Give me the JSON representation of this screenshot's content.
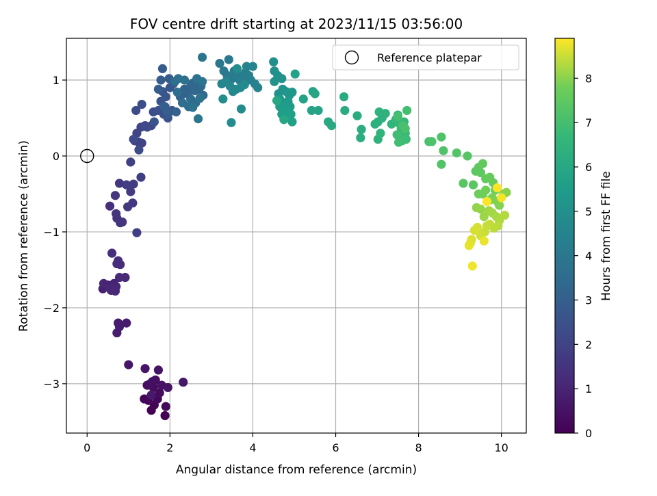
{
  "chart_data": {
    "type": "scatter",
    "title": "FOV centre drift starting at 2023/11/15 03:56:00",
    "xlabel": "Angular distance from reference (arcmin)",
    "ylabel": "Rotation from reference (arcmin)",
    "xlim": [
      -0.5,
      10.6
    ],
    "ylim": [
      -3.65,
      1.55
    ],
    "xticks": [
      0,
      2,
      4,
      6,
      8,
      10
    ],
    "yticks": [
      -3,
      -2,
      -1,
      0,
      1
    ],
    "xtick_labels": [
      "0",
      "2",
      "4",
      "6",
      "8",
      "10"
    ],
    "ytick_labels": [
      "−3",
      "−2",
      "−1",
      "0",
      "1"
    ],
    "grid": true,
    "colormap": "viridis",
    "colorbar": {
      "label": "Hours from first FF file",
      "range": [
        0,
        8.9
      ],
      "ticks": [
        0,
        1,
        2,
        3,
        4,
        5,
        6,
        7,
        8
      ],
      "tick_labels": [
        "0",
        "1",
        "2",
        "3",
        "4",
        "5",
        "6",
        "7",
        "8"
      ]
    },
    "legend": {
      "placement": "top-right",
      "entries": [
        {
          "label": "Reference platepar",
          "marker": "open-circle"
        }
      ]
    },
    "reference_point": {
      "x": 0,
      "y": 0
    },
    "series": [
      {
        "points": [
          [
            1.55,
            -3.35
          ],
          [
            1.88,
            -3.42
          ],
          [
            1.62,
            -3.28
          ],
          [
            1.38,
            -3.2
          ],
          [
            1.48,
            -3.22
          ],
          [
            1.7,
            -3.2
          ],
          [
            1.9,
            -3.3
          ],
          [
            1.75,
            -3.12
          ],
          [
            1.6,
            -3.05
          ],
          [
            1.45,
            -3.02
          ],
          [
            1.52,
            -3.0
          ],
          [
            1.65,
            -2.95
          ],
          [
            1.58,
            -2.97
          ],
          [
            1.8,
            -3.02
          ],
          [
            1.95,
            -3.05
          ],
          [
            1.72,
            -2.82
          ],
          [
            1.4,
            -2.8
          ],
          [
            1.0,
            -2.75
          ],
          [
            2.32,
            -2.98
          ],
          [
            1.55,
            -3.15
          ],
          [
            0.75,
            -2.2
          ],
          [
            0.95,
            -2.2
          ],
          [
            0.72,
            -2.33
          ],
          [
            0.78,
            -2.25
          ],
          [
            0.38,
            -1.75
          ],
          [
            0.5,
            -1.7
          ],
          [
            0.65,
            -1.68
          ],
          [
            0.58,
            -1.77
          ],
          [
            0.4,
            -1.68
          ],
          [
            0.7,
            -1.72
          ],
          [
            0.55,
            -1.74
          ],
          [
            0.68,
            -1.78
          ],
          [
            0.78,
            -1.6
          ],
          [
            0.92,
            -1.6
          ],
          [
            0.72,
            -1.42
          ],
          [
            0.8,
            -1.43
          ],
          [
            0.75,
            -1.38
          ],
          [
            0.6,
            -1.28
          ],
          [
            0.55,
            -0.66
          ],
          [
            0.72,
            -0.82
          ],
          [
            0.8,
            -0.88
          ],
          [
            0.7,
            -0.76
          ],
          [
            0.85,
            -0.87
          ],
          [
            0.68,
            -0.52
          ],
          [
            0.78,
            -0.36
          ],
          [
            0.98,
            -0.67
          ],
          [
            1.1,
            -0.62
          ],
          [
            1.05,
            -0.47
          ],
          [
            1.12,
            -0.37
          ],
          [
            0.95,
            -0.38
          ],
          [
            1.2,
            -1.01
          ],
          [
            1.3,
            -0.28
          ],
          [
            1.05,
            -0.08
          ],
          [
            1.15,
            0.2
          ],
          [
            1.25,
            0.18
          ],
          [
            1.32,
            0.17
          ],
          [
            1.2,
            0.3
          ],
          [
            1.3,
            0.38
          ],
          [
            1.4,
            0.4
          ],
          [
            1.45,
            0.38
          ],
          [
            1.55,
            0.4
          ],
          [
            1.12,
            0.22
          ],
          [
            1.25,
            0.08
          ],
          [
            1.18,
            0.6
          ],
          [
            1.32,
            0.68
          ],
          [
            1.6,
            0.58
          ],
          [
            1.72,
            0.6
          ],
          [
            1.85,
            0.55
          ],
          [
            1.95,
            0.5
          ],
          [
            2.05,
            0.6
          ],
          [
            1.62,
            0.45
          ],
          [
            1.78,
            0.72
          ],
          [
            1.82,
            0.85
          ],
          [
            1.9,
            0.78
          ],
          [
            2.0,
            0.9
          ],
          [
            2.08,
            0.95
          ],
          [
            1.95,
            0.55
          ],
          [
            1.88,
            0.65
          ],
          [
            1.82,
            1.15
          ],
          [
            1.98,
            1.02
          ],
          [
            1.78,
            1.0
          ],
          [
            1.72,
            0.88
          ],
          [
            1.85,
            0.65
          ],
          [
            1.92,
            0.6
          ],
          [
            2.15,
            0.58
          ],
          [
            2.25,
            0.78
          ],
          [
            2.35,
            0.88
          ],
          [
            2.42,
            0.82
          ],
          [
            2.5,
            0.92
          ],
          [
            2.55,
            0.96
          ],
          [
            2.6,
            0.86
          ],
          [
            2.65,
            0.95
          ],
          [
            2.7,
            0.88
          ],
          [
            2.75,
            0.92
          ],
          [
            2.8,
            0.8
          ],
          [
            2.62,
            0.7
          ],
          [
            2.5,
            0.75
          ],
          [
            2.45,
            0.65
          ],
          [
            2.3,
            0.7
          ],
          [
            2.18,
            0.84
          ],
          [
            2.12,
            0.98
          ],
          [
            2.2,
            1.02
          ],
          [
            2.35,
            1.0
          ],
          [
            2.65,
            1.02
          ],
          [
            2.78,
            0.98
          ],
          [
            2.72,
            0.76
          ],
          [
            2.55,
            0.64
          ],
          [
            2.68,
            0.49
          ],
          [
            2.78,
            1.3
          ],
          [
            3.2,
            1.22
          ],
          [
            3.42,
            1.27
          ],
          [
            3.3,
            1.12
          ],
          [
            3.38,
            1.06
          ],
          [
            3.5,
            1.02
          ],
          [
            3.55,
            1.12
          ],
          [
            3.62,
            1.08
          ],
          [
            3.68,
            1.0
          ],
          [
            3.75,
            1.02
          ],
          [
            3.82,
            1.1
          ],
          [
            3.9,
            1.06
          ],
          [
            3.95,
            1.0
          ],
          [
            4.05,
            0.95
          ],
          [
            4.12,
            0.9
          ],
          [
            3.85,
            1.18
          ],
          [
            4.0,
            1.18
          ],
          [
            3.25,
            0.95
          ],
          [
            3.35,
            0.98
          ],
          [
            3.45,
            0.92
          ],
          [
            3.52,
            0.85
          ],
          [
            3.6,
            0.88
          ],
          [
            3.7,
            0.9
          ],
          [
            3.8,
            0.94
          ],
          [
            3.72,
            0.62
          ],
          [
            3.48,
            0.44
          ],
          [
            3.28,
            0.75
          ],
          [
            3.62,
            1.15
          ],
          [
            4.5,
            1.24
          ],
          [
            4.52,
            1.12
          ],
          [
            4.6,
            1.06
          ],
          [
            4.7,
            1.02
          ],
          [
            4.52,
            0.98
          ],
          [
            4.62,
            0.82
          ],
          [
            4.72,
            0.88
          ],
          [
            4.8,
            0.85
          ],
          [
            4.88,
            0.8
          ],
          [
            4.95,
            0.84
          ],
          [
            4.65,
            0.75
          ],
          [
            4.75,
            0.7
          ],
          [
            4.85,
            0.72
          ],
          [
            4.9,
            0.65
          ],
          [
            4.65,
            0.65
          ],
          [
            4.72,
            0.62
          ],
          [
            4.82,
            0.6
          ],
          [
            4.7,
            0.55
          ],
          [
            4.78,
            0.5
          ],
          [
            4.92,
            0.55
          ],
          [
            4.95,
            0.45
          ],
          [
            5.02,
            1.08
          ],
          [
            5.22,
            0.75
          ],
          [
            5.42,
            0.6
          ],
          [
            5.58,
            0.6
          ],
          [
            5.45,
            0.85
          ],
          [
            5.5,
            0.82
          ],
          [
            4.75,
            0.48
          ],
          [
            4.58,
            0.73
          ],
          [
            5.82,
            0.45
          ],
          [
            5.9,
            0.4
          ],
          [
            6.2,
            0.78
          ],
          [
            6.22,
            0.6
          ],
          [
            6.52,
            0.53
          ],
          [
            6.62,
            0.35
          ],
          [
            6.6,
            0.24
          ],
          [
            6.95,
            0.42
          ],
          [
            7.02,
            0.45
          ],
          [
            7.12,
            0.5
          ],
          [
            7.2,
            0.56
          ],
          [
            7.05,
            0.58
          ],
          [
            7.02,
            0.22
          ],
          [
            7.08,
            0.3
          ],
          [
            7.35,
            0.42
          ],
          [
            7.5,
            0.54
          ],
          [
            7.45,
            0.48
          ],
          [
            7.55,
            0.42
          ],
          [
            7.65,
            0.45
          ],
          [
            7.58,
            0.36
          ],
          [
            7.68,
            0.3
          ],
          [
            7.55,
            0.25
          ],
          [
            7.6,
            0.2
          ],
          [
            7.7,
            0.22
          ],
          [
            7.52,
            0.18
          ],
          [
            7.48,
            0.28
          ],
          [
            7.72,
            0.6
          ],
          [
            7.5,
            0.52
          ],
          [
            7.62,
            0.4
          ],
          [
            7.68,
            0.36
          ],
          [
            8.25,
            0.19
          ],
          [
            8.32,
            0.19
          ],
          [
            8.55,
            0.25
          ],
          [
            8.6,
            0.07
          ],
          [
            8.55,
            -0.11
          ],
          [
            8.92,
            0.04
          ],
          [
            9.18,
            0.0
          ],
          [
            9.08,
            -0.36
          ],
          [
            9.32,
            -0.38
          ],
          [
            9.38,
            -0.2
          ],
          [
            9.5,
            -0.22
          ],
          [
            9.45,
            -0.15
          ],
          [
            9.55,
            -0.1
          ],
          [
            9.62,
            -0.3
          ],
          [
            9.72,
            -0.28
          ],
          [
            9.8,
            -0.35
          ],
          [
            9.85,
            -0.45
          ],
          [
            9.45,
            -0.5
          ],
          [
            9.55,
            -0.5
          ],
          [
            9.62,
            -0.45
          ],
          [
            9.72,
            -0.58
          ],
          [
            9.78,
            -0.55
          ],
          [
            9.9,
            -0.6
          ],
          [
            9.95,
            -0.65
          ],
          [
            10.05,
            -0.5
          ],
          [
            10.12,
            -0.48
          ],
          [
            9.4,
            -0.68
          ],
          [
            9.5,
            -0.7
          ],
          [
            9.58,
            -0.8
          ],
          [
            9.7,
            -0.72
          ],
          [
            9.78,
            -0.75
          ],
          [
            9.88,
            -0.8
          ],
          [
            9.95,
            -0.85
          ],
          [
            10.08,
            -0.78
          ],
          [
            9.92,
            -0.92
          ],
          [
            9.82,
            -0.95
          ],
          [
            9.72,
            -0.9
          ],
          [
            9.65,
            -0.92
          ],
          [
            9.6,
            -1.0
          ],
          [
            9.5,
            -1.05
          ],
          [
            9.42,
            -0.94
          ],
          [
            9.35,
            -0.98
          ],
          [
            9.28,
            -1.1
          ],
          [
            9.25,
            -1.15
          ],
          [
            9.22,
            -1.18
          ],
          [
            9.58,
            -1.12
          ],
          [
            9.3,
            -1.45
          ],
          [
            10.0,
            -0.55
          ],
          [
            9.9,
            -0.42
          ],
          [
            9.65,
            -0.6
          ]
        ]
      }
    ]
  }
}
